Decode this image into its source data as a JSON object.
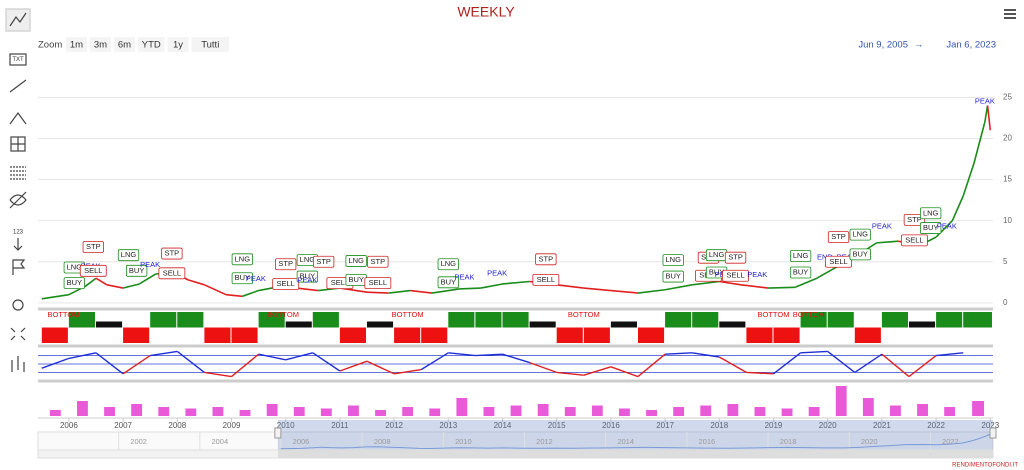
{
  "chart_data": {
    "type": "line",
    "title": "WEEKLY",
    "zoom_label": "Zoom",
    "zoom_buttons": [
      "1m",
      "3m",
      "6m",
      "YTD",
      "1y",
      "Tutti"
    ],
    "range_from": "Jun 9, 2005",
    "range_arrow": "→",
    "range_to": "Jan 6, 2023",
    "credits": "RENDIMENTOFONDI.IT",
    "toolbar_texts": [
      "TXT",
      "123"
    ],
    "xlim": [
      2005.43,
      2023.05
    ],
    "xticks": [
      2006,
      2007,
      2008,
      2009,
      2010,
      2011,
      2012,
      2013,
      2014,
      2015,
      2016,
      2017,
      2018,
      2019,
      2020,
      2021,
      2022,
      2023
    ],
    "ylim": [
      -0.5,
      26.5
    ],
    "yticks": [
      0,
      5,
      10,
      15,
      20,
      25
    ],
    "grid": true,
    "x": [
      2005.5,
      2006.0,
      2006.3,
      2006.5,
      2006.7,
      2007.0,
      2007.3,
      2007.6,
      2007.9,
      2008.2,
      2008.5,
      2008.9,
      2009.2,
      2009.5,
      2009.9,
      2010.2,
      2010.6,
      2011.0,
      2011.5,
      2011.9,
      2012.3,
      2012.7,
      2013.2,
      2013.6,
      2014.0,
      2014.5,
      2015.0,
      2015.5,
      2016.0,
      2016.5,
      2017.0,
      2017.5,
      2018.0,
      2018.4,
      2018.9,
      2019.4,
      2019.8,
      2020.2,
      2020.6,
      2020.9,
      2021.3,
      2021.7,
      2022.0,
      2022.3,
      2022.5,
      2022.7,
      2022.9,
      2022.95,
      2023.0
    ],
    "series": [
      {
        "color": "#1a8c1a",
        "down_color": "#e02020",
        "values": [
          0.5,
          1.0,
          2.0,
          3.0,
          2.2,
          1.8,
          2.3,
          3.5,
          3.8,
          2.8,
          2.2,
          1.0,
          0.8,
          1.5,
          2.0,
          1.8,
          1.5,
          1.8,
          1.3,
          1.2,
          1.5,
          1.2,
          1.7,
          1.8,
          2.3,
          2.6,
          2.2,
          1.8,
          1.5,
          1.2,
          1.6,
          2.2,
          2.6,
          2.2,
          1.8,
          1.9,
          3.0,
          4.5,
          6.0,
          7.3,
          7.5,
          7.0,
          8.0,
          10.0,
          13.0,
          17.0,
          22.0,
          24.0,
          21.0
        ]
      }
    ],
    "annotations": [
      {
        "text": "BUY",
        "x": 2006.1,
        "y": 2.4,
        "color": "#1a8c1a"
      },
      {
        "text": "LNG",
        "x": 2006.1,
        "y": 4.3,
        "color": "#1a8c1a"
      },
      {
        "text": "PEAK",
        "x": 2006.4,
        "y": 4.4,
        "color": "#2222cc"
      },
      {
        "text": "SELL",
        "x": 2006.45,
        "y": 3.9,
        "color": "#cc2222"
      },
      {
        "text": "STP",
        "x": 2006.45,
        "y": 6.8,
        "color": "#cc2222"
      },
      {
        "text": "LNG",
        "x": 2007.1,
        "y": 5.8,
        "color": "#1a8c1a"
      },
      {
        "text": "BUY",
        "x": 2007.25,
        "y": 3.9,
        "color": "#1a8c1a"
      },
      {
        "text": "PEAK",
        "x": 2007.5,
        "y": 4.6,
        "color": "#2222cc"
      },
      {
        "text": "STP",
        "x": 2007.9,
        "y": 6.0,
        "color": "#cc2222"
      },
      {
        "text": "SELL",
        "x": 2007.9,
        "y": 3.6,
        "color": "#cc2222"
      },
      {
        "text": "LNG",
        "x": 2009.2,
        "y": 5.3,
        "color": "#1a8c1a"
      },
      {
        "text": "BUY",
        "x": 2009.2,
        "y": 3.0,
        "color": "#1a8c1a"
      },
      {
        "text": "PEAK",
        "x": 2009.45,
        "y": 2.9,
        "color": "#2222cc"
      },
      {
        "text": "STP",
        "x": 2010.0,
        "y": 4.7,
        "color": "#cc2222"
      },
      {
        "text": "SELL",
        "x": 2010.0,
        "y": 2.3,
        "color": "#cc2222"
      },
      {
        "text": "LNG",
        "x": 2010.4,
        "y": 5.2,
        "color": "#1a8c1a"
      },
      {
        "text": "BUY",
        "x": 2010.4,
        "y": 3.2,
        "color": "#1a8c1a"
      },
      {
        "text": "PEAK",
        "x": 2010.4,
        "y": 2.7,
        "color": "#2222cc"
      },
      {
        "text": "STP",
        "x": 2010.7,
        "y": 5.0,
        "color": "#cc2222"
      },
      {
        "text": "SELL",
        "x": 2011.0,
        "y": 2.4,
        "color": "#cc2222"
      },
      {
        "text": "LNG",
        "x": 2011.3,
        "y": 5.1,
        "color": "#1a8c1a"
      },
      {
        "text": "BUY",
        "x": 2011.3,
        "y": 2.8,
        "color": "#1a8c1a"
      },
      {
        "text": "STP",
        "x": 2011.7,
        "y": 5.0,
        "color": "#cc2222"
      },
      {
        "text": "SELL",
        "x": 2011.7,
        "y": 2.4,
        "color": "#cc2222"
      },
      {
        "text": "LNG",
        "x": 2013.0,
        "y": 4.7,
        "color": "#1a8c1a"
      },
      {
        "text": "BUY",
        "x": 2013.0,
        "y": 2.5,
        "color": "#1a8c1a"
      },
      {
        "text": "PEAK",
        "x": 2013.3,
        "y": 3.1,
        "color": "#2222cc"
      },
      {
        "text": "PEAK",
        "x": 2013.9,
        "y": 3.6,
        "color": "#2222cc"
      },
      {
        "text": "STP",
        "x": 2014.8,
        "y": 5.3,
        "color": "#cc2222"
      },
      {
        "text": "SELL",
        "x": 2014.8,
        "y": 2.8,
        "color": "#cc2222"
      },
      {
        "text": "LNG",
        "x": 2017.15,
        "y": 5.2,
        "color": "#1a8c1a"
      },
      {
        "text": "BUY",
        "x": 2017.15,
        "y": 3.2,
        "color": "#1a8c1a"
      },
      {
        "text": "SELL",
        "x": 2017.8,
        "y": 3.3,
        "color": "#cc2222"
      },
      {
        "text": "STP",
        "x": 2017.8,
        "y": 5.5,
        "color": "#cc2222"
      },
      {
        "text": "LNG",
        "x": 2017.95,
        "y": 5.8,
        "color": "#1a8c1a"
      },
      {
        "text": "BUY",
        "x": 2017.95,
        "y": 3.7,
        "color": "#1a8c1a"
      },
      {
        "text": "PEAK",
        "x": 2018.1,
        "y": 3.4,
        "color": "#2222cc"
      },
      {
        "text": "STP",
        "x": 2018.3,
        "y": 5.5,
        "color": "#cc2222"
      },
      {
        "text": "SELL",
        "x": 2018.3,
        "y": 3.3,
        "color": "#cc2222"
      },
      {
        "text": "PEAK",
        "x": 2018.7,
        "y": 3.4,
        "color": "#2222cc"
      },
      {
        "text": "LNG",
        "x": 2019.5,
        "y": 5.7,
        "color": "#1a8c1a"
      },
      {
        "text": "BUY",
        "x": 2019.5,
        "y": 3.7,
        "color": "#1a8c1a"
      },
      {
        "text": "END",
        "x": 2019.95,
        "y": 5.5,
        "color": "#2222cc"
      },
      {
        "text": "PEAK",
        "x": 2020.35,
        "y": 5.5,
        "color": "#2222cc"
      },
      {
        "text": "SELL",
        "x": 2020.2,
        "y": 5.0,
        "color": "#cc2222"
      },
      {
        "text": "STP",
        "x": 2020.2,
        "y": 8.0,
        "color": "#cc2222"
      },
      {
        "text": "LNG",
        "x": 2020.6,
        "y": 8.3,
        "color": "#1a8c1a"
      },
      {
        "text": "BUY",
        "x": 2020.6,
        "y": 5.9,
        "color": "#1a8c1a"
      },
      {
        "text": "PEAK",
        "x": 2021.0,
        "y": 9.3,
        "color": "#2222cc"
      },
      {
        "text": "STP",
        "x": 2021.6,
        "y": 10.1,
        "color": "#cc2222"
      },
      {
        "text": "SELL",
        "x": 2021.6,
        "y": 7.6,
        "color": "#cc2222"
      },
      {
        "text": "BUY",
        "x": 2021.9,
        "y": 9.1,
        "color": "#1a8c1a"
      },
      {
        "text": "LNG",
        "x": 2021.9,
        "y": 10.9,
        "color": "#1a8c1a"
      },
      {
        "text": "PEAK",
        "x": 2022.2,
        "y": 9.3,
        "color": "#2222cc"
      },
      {
        "text": "PEAK",
        "x": 2022.9,
        "y": 24.5,
        "color": "#2222cc"
      }
    ],
    "trend_x": [
      2005.5,
      2006.0,
      2006.5,
      2007.0,
      2007.5,
      2008.0,
      2008.5,
      2009.0,
      2009.5,
      2010.0,
      2010.5,
      2011.0,
      2011.5,
      2012.0,
      2012.5,
      2013.0,
      2013.5,
      2014.0,
      2014.5,
      2015.0,
      2015.5,
      2016.0,
      2016.5,
      2017.0,
      2017.5,
      2018.0,
      2018.5,
      2019.0,
      2019.5,
      2020.0,
      2020.5,
      2021.0,
      2021.5,
      2022.0,
      2022.5
    ],
    "trend_values": [
      -1,
      1,
      0,
      -1,
      1,
      1,
      -1,
      -1,
      1,
      0,
      1,
      -1,
      0,
      -1,
      -1,
      1,
      1,
      1,
      0,
      -1,
      -1,
      0,
      -1,
      1,
      1,
      0,
      -1,
      -1,
      1,
      1,
      -1,
      1,
      0,
      1,
      1
    ],
    "trend_colors": {
      "1": "#1a8c1a",
      "0": "#111111",
      "-1": "#ee1111"
    },
    "trend_annotations": [
      {
        "text": "BOTTOM",
        "x": 2005.9
      },
      {
        "text": "BOTTOM",
        "x": 2009.95
      },
      {
        "text": "BOTTOM",
        "x": 2012.25
      },
      {
        "text": "BOTTOM",
        "x": 2015.5
      },
      {
        "text": "BOTTOM",
        "x": 2019.0
      },
      {
        "text": "BOTTOM",
        "x": 2019.65
      }
    ],
    "oscillator_values": [
      -0.3,
      0.4,
      0.8,
      -0.7,
      0.6,
      0.9,
      -0.6,
      -0.9,
      0.7,
      0.3,
      0.8,
      -0.5,
      0.2,
      -0.7,
      -0.4,
      0.8,
      0.6,
      0.7,
      0.1,
      -0.6,
      -0.8,
      -0.2,
      -0.9,
      0.7,
      0.8,
      0.5,
      -0.6,
      -0.7,
      0.8,
      0.9,
      -0.6,
      0.7,
      -0.9,
      0.6,
      0.8
    ],
    "oscillator_levels": [
      0.6,
      0,
      -0.6
    ],
    "oscillator_colors": {
      "up": "#1f2fd8",
      "down": "#e02020"
    },
    "volume_values": [
      0.2,
      0.5,
      0.3,
      0.4,
      0.3,
      0.25,
      0.3,
      0.2,
      0.4,
      0.3,
      0.25,
      0.35,
      0.2,
      0.3,
      0.25,
      0.6,
      0.3,
      0.35,
      0.4,
      0.3,
      0.35,
      0.25,
      0.2,
      0.3,
      0.35,
      0.4,
      0.3,
      0.25,
      0.3,
      1.0,
      0.6,
      0.35,
      0.4,
      0.3,
      0.5
    ],
    "volume_color": "#e85ad8",
    "navigator_xlim": [
      1999.52,
      2023.05
    ],
    "navigator_xticks": [
      2002,
      2004,
      2006,
      2008,
      2010,
      2012,
      2014,
      2016,
      2018,
      2020,
      2022
    ]
  }
}
